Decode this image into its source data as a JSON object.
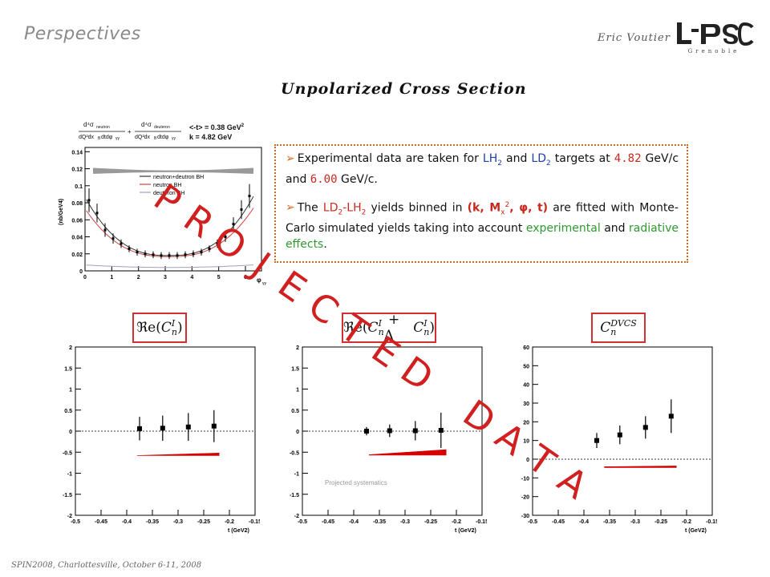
{
  "slide_title": "Perspectives",
  "author": "Eric Voutier",
  "logo": {
    "letters": "L PSC",
    "subtitle": "Grenoble"
  },
  "section_title": "Unpolarized Cross Section",
  "bullets": {
    "b1": {
      "t1": "Experimental data are taken for ",
      "lh2": "LH",
      "lh2sub": "2",
      "and": " and ",
      "ld2": "LD",
      "ld2sub": "2",
      "t2": " targets at ",
      "e1": "4.82",
      "t3": " GeV/c and ",
      "e2": "6.00",
      "t4": " GeV/c."
    },
    "b2": {
      "t1": "The ",
      "ld2": "LD",
      "ld2sub": "2",
      "dash": "-LH",
      "lh2sub": "2",
      "t2": " yields binned in ",
      "vars": "(k, M",
      "xsub": "x",
      "sup2": "2",
      "vars2": ", φ, t)",
      "t3": " are fitted with Monte-Carlo simulated yields taking into account ",
      "exp": "experimental",
      "t4": " and ",
      "rad": "radiative effects",
      "t5": "."
    }
  },
  "top_plot": {
    "header_t": "<-t> = 0.38 GeV",
    "header_t_sup": "2",
    "header_k": "k = 4.82 GeV",
    "ylabel": "(nb/GeV",
    "ylabel_sup": "4",
    "xlabel": "φ",
    "xlabel_sub": "γγ",
    "legend": [
      "neutron+deutron BH",
      "neutron BH",
      "deuteron BH"
    ],
    "legend_colors": [
      "#333333",
      "#d04040",
      "#a0a0c0"
    ],
    "yticks": [
      "0",
      "0.02",
      "0.04",
      "0.06",
      "0.08",
      "0.1",
      "0.12",
      "0.14"
    ],
    "xticks": [
      "0",
      "1",
      "2",
      "3",
      "4",
      "5",
      "6"
    ],
    "data": {
      "phi": [
        0.15,
        0.45,
        0.75,
        1.05,
        1.35,
        1.65,
        1.95,
        2.25,
        2.55,
        2.85,
        3.15,
        3.45,
        3.75,
        4.05,
        4.35,
        4.65,
        4.95,
        5.25,
        5.55,
        5.85,
        6.15
      ],
      "y": [
        0.083,
        0.068,
        0.048,
        0.038,
        0.032,
        0.026,
        0.022,
        0.02,
        0.019,
        0.018,
        0.018,
        0.018,
        0.019,
        0.02,
        0.022,
        0.026,
        0.032,
        0.04,
        0.055,
        0.072,
        0.088
      ],
      "err": [
        0.014,
        0.011,
        0.008,
        0.006,
        0.005,
        0.004,
        0.004,
        0.004,
        0.004,
        0.004,
        0.004,
        0.004,
        0.004,
        0.004,
        0.004,
        0.004,
        0.005,
        0.006,
        0.008,
        0.011,
        0.014
      ]
    }
  },
  "formula_labels": [
    "ℜe",
    "ℜe",
    "C"
  ],
  "projected_systematics": "Projected systematics",
  "watermark": "P R O J E C T E D   D A T A",
  "footer": "SPIN2008, Charlottesville, October 6-11, 2008",
  "x_title": "t (GeV",
  "x_title_sup": "2",
  "x_title_end": ")",
  "plots": [
    {
      "yticks": [
        "-2",
        "-1.5",
        "-1",
        "-0.5",
        "0",
        "0.5",
        "1",
        "1.5",
        "2"
      ],
      "ylim": [
        -2,
        2
      ],
      "xticks": [
        "-0.5",
        "-0.45",
        "-0.4",
        "-0.35",
        "-0.3",
        "-0.25",
        "-0.2",
        "-0.15"
      ],
      "xlim": [
        -0.5,
        -0.15
      ],
      "points": [
        {
          "t": -0.375,
          "v": 0.06,
          "e": 0.28
        },
        {
          "t": -0.33,
          "v": 0.07,
          "e": 0.3
        },
        {
          "t": -0.28,
          "v": 0.1,
          "e": 0.33
        },
        {
          "t": -0.23,
          "v": 0.12,
          "e": 0.38
        }
      ],
      "sys": {
        "t0": -0.38,
        "t1": -0.22,
        "base": -0.58,
        "top0": -0.58,
        "top1": -0.52
      }
    },
    {
      "yticks": [
        "-2",
        "-1.5",
        "-1",
        "-0.5",
        "0",
        "0.5",
        "1",
        "1.5",
        "2"
      ],
      "ylim": [
        -2,
        2
      ],
      "xticks": [
        "-0.5",
        "-0.45",
        "-0.4",
        "-0.35",
        "-0.3",
        "-0.25",
        "-0.2",
        "-0.15"
      ],
      "xlim": [
        -0.5,
        -0.15
      ],
      "points": [
        {
          "t": -0.375,
          "v": 0.0,
          "e": 0.1
        },
        {
          "t": -0.33,
          "v": 0.01,
          "e": 0.15
        },
        {
          "t": -0.28,
          "v": 0.01,
          "e": 0.23
        },
        {
          "t": -0.23,
          "v": 0.02,
          "e": 0.42
        }
      ],
      "sys": {
        "t0": -0.37,
        "t1": -0.22,
        "base": -0.57,
        "top0": -0.56,
        "top1": -0.44
      }
    },
    {
      "yticks": [
        "-30",
        "-20",
        "-10",
        "0",
        "10",
        "20",
        "30",
        "40",
        "50",
        "60"
      ],
      "ylim": [
        -30,
        60
      ],
      "xticks": [
        "-0.5",
        "-0.45",
        "-0.4",
        "-0.35",
        "-0.3",
        "-0.25",
        "-0.2",
        "-0.15"
      ],
      "xlim": [
        -0.5,
        -0.15
      ],
      "points": [
        {
          "t": -0.375,
          "v": 10,
          "e": 4
        },
        {
          "t": -0.33,
          "v": 13,
          "e": 5
        },
        {
          "t": -0.28,
          "v": 17,
          "e": 6
        },
        {
          "t": -0.23,
          "v": 23,
          "e": 9
        }
      ],
      "sys": {
        "t0": -0.36,
        "t1": -0.22,
        "base": -4.5,
        "top0": -4.0,
        "top1": -3.6
      }
    }
  ]
}
